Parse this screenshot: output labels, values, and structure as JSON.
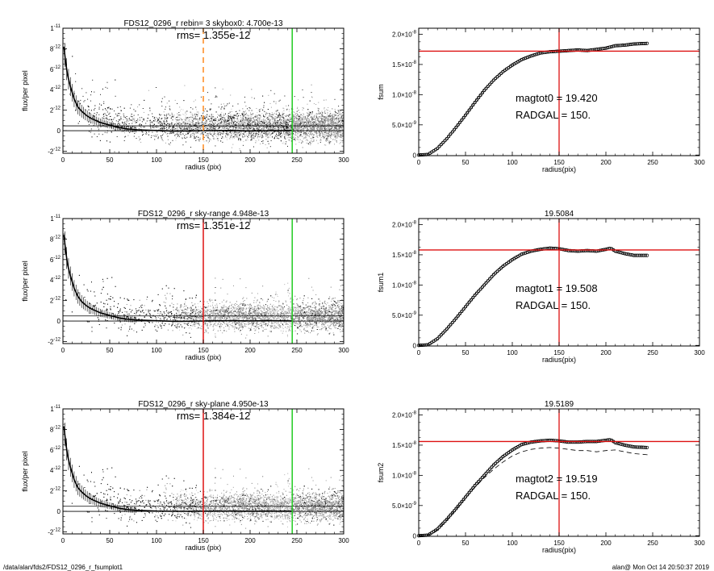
{
  "footer": {
    "left_path": "/data/alan/fds2/FDS12_0296_r_fsumplot1",
    "right_stamp": "alan@  Mon Oct 14 20:50:37 2019"
  },
  "colors": {
    "orange": "#ff8a1e",
    "green": "#22cc22",
    "red": "#dd1111",
    "scatter_dark": "#1a1a1a",
    "scatter_gray": "#9a9a9a",
    "scatter_light": "#c6c6c6"
  },
  "chart_data": [
    {
      "id": "p1",
      "type": "scatter",
      "title": "FDS12_0296_r rebin= 3    skybox0:  4.700e-13",
      "annotation": "rms= 1.355e-12",
      "xlabel": "radius (pix)",
      "ylabel": "flux/per pixel",
      "xlim": [
        0,
        300
      ],
      "ylim": [
        -2.2e-12,
        1e-11
      ],
      "xticks": [
        0,
        50,
        100,
        150,
        200,
        250,
        300
      ],
      "xtick_labels": [
        "0",
        "50",
        "100",
        "150",
        "200",
        "250",
        "300"
      ],
      "yticks": [
        -2e-12,
        0,
        2e-12,
        4e-12,
        6e-12,
        8e-12,
        1e-11
      ],
      "ytick_labels": [
        [
          "-2",
          "-12"
        ],
        [
          "0",
          ""
        ],
        [
          "2",
          "-12"
        ],
        [
          "4",
          "-12"
        ],
        [
          "6",
          "-12"
        ],
        [
          "8",
          "-12"
        ],
        [
          "1",
          "-11"
        ]
      ],
      "hlines": [
        {
          "y": 0,
          "color": "#000000"
        },
        {
          "y": 4.7e-13,
          "color": "#000000"
        }
      ],
      "vlines": [
        {
          "x": 150,
          "color": "orange",
          "dash": true
        },
        {
          "x": 245,
          "color": "green",
          "dash": false
        }
      ],
      "profile": {
        "x": [
          1,
          3,
          5,
          8,
          12,
          16,
          20,
          25,
          30,
          40,
          50,
          60,
          70,
          80,
          100,
          120,
          150,
          180,
          200,
          220,
          245
        ],
        "y": [
          8.2e-12,
          6.6e-12,
          5.4e-12,
          4.3e-12,
          3.1e-12,
          2.3e-12,
          1.9e-12,
          1.5e-12,
          1.2e-12,
          8e-13,
          5.5e-13,
          3e-13,
          1.6e-13,
          8e-14,
          2e-14,
          -4e-14,
          0,
          2e-14,
          -3e-14,
          0,
          1e-14
        ]
      },
      "scatter_style": {
        "shade_start": 245,
        "light_band": null
      }
    },
    {
      "id": "p2",
      "type": "line",
      "title": "",
      "annotation_lines": [
        "magtot0 =  19.420",
        "RADGAL =    150."
      ],
      "xlabel": "radius(pix)",
      "ylabel": "fsum",
      "xlim": [
        0,
        300
      ],
      "ylim": [
        -1e-10,
        2.1e-08
      ],
      "xticks": [
        0,
        50,
        100,
        150,
        200,
        250,
        300
      ],
      "xtick_labels": [
        "0",
        "50",
        "100",
        "150",
        "200",
        "250",
        "300"
      ],
      "yticks": [
        0,
        5e-09,
        1e-08,
        1.5e-08,
        2e-08
      ],
      "ytick_labels": [
        [
          "0",
          ""
        ],
        [
          "5.0×10",
          "-9"
        ],
        [
          "1.0×10",
          "-8"
        ],
        [
          "1.5×10",
          "-8"
        ],
        [
          "2.0×10",
          "-8"
        ]
      ],
      "hline": 1.72e-08,
      "vline": 150,
      "curve": {
        "x": [
          0,
          10,
          20,
          30,
          40,
          50,
          60,
          70,
          80,
          90,
          100,
          110,
          120,
          130,
          140,
          150,
          160,
          170,
          180,
          190,
          200,
          210,
          220,
          230,
          245
        ],
        "y": [
          0,
          1e-10,
          1.1e-09,
          2.7e-09,
          4.6e-09,
          6.6e-09,
          8.7e-09,
          1.07e-08,
          1.24e-08,
          1.38e-08,
          1.49e-08,
          1.58e-08,
          1.64e-08,
          1.69e-08,
          1.71e-08,
          1.72e-08,
          1.73e-08,
          1.74e-08,
          1.73e-08,
          1.75e-08,
          1.77e-08,
          1.81e-08,
          1.82e-08,
          1.84e-08,
          1.85e-08
        ]
      },
      "lower_dashed": null
    },
    {
      "id": "p3",
      "type": "scatter",
      "title": "FDS12_0296_r sky-range  4.948e-13",
      "annotation": "rms= 1.351e-12",
      "xlabel": "radius (pix)",
      "ylabel": "flux/per pixel",
      "xlim": [
        0,
        300
      ],
      "ylim": [
        -2.2e-12,
        1e-11
      ],
      "xticks": [
        0,
        50,
        100,
        150,
        200,
        250,
        300
      ],
      "xtick_labels": [
        "0",
        "50",
        "100",
        "150",
        "200",
        "250",
        "300"
      ],
      "yticks": [
        -2e-12,
        0,
        2e-12,
        4e-12,
        6e-12,
        8e-12,
        1e-11
      ],
      "ytick_labels": [
        [
          "-2",
          "-12"
        ],
        [
          "0",
          ""
        ],
        [
          "2",
          "-12"
        ],
        [
          "4",
          "-12"
        ],
        [
          "6",
          "-12"
        ],
        [
          "8",
          "-12"
        ],
        [
          "1",
          "-11"
        ]
      ],
      "hlines": [
        {
          "y": 0,
          "color": "#000000"
        },
        {
          "y": 4.948e-13,
          "color": "#000000"
        }
      ],
      "vlines": [
        {
          "x": 150,
          "color": "red",
          "dash": false
        },
        {
          "x": 245,
          "color": "green",
          "dash": false
        }
      ],
      "profile": {
        "x": [
          1,
          3,
          5,
          8,
          12,
          16,
          20,
          25,
          30,
          40,
          50,
          60,
          70,
          80,
          100,
          120,
          150,
          180,
          200,
          220,
          245
        ],
        "y": [
          8.4e-12,
          6.8e-12,
          5.5e-12,
          4.4e-12,
          3.2e-12,
          2.4e-12,
          1.9e-12,
          1.5e-12,
          1.2e-12,
          8e-13,
          5.5e-13,
          3e-13,
          1.7e-13,
          1e-13,
          3e-14,
          -3e-14,
          0,
          3e-14,
          1e-14,
          3e-14,
          1e-14
        ]
      },
      "scatter_style": {
        "shade_start": 150,
        "light_band": [
          220,
          245
        ]
      }
    },
    {
      "id": "p4",
      "type": "line",
      "title": "19.5084",
      "annotation_lines": [
        "magtot1 =  19.508",
        "RADGAL =    150."
      ],
      "xlabel": "radius(pix)",
      "ylabel": "fsum1",
      "xlim": [
        0,
        300
      ],
      "ylim": [
        -1e-10,
        2.1e-08
      ],
      "xticks": [
        0,
        50,
        100,
        150,
        200,
        250,
        300
      ],
      "xtick_labels": [
        "0",
        "50",
        "100",
        "150",
        "200",
        "250",
        "300"
      ],
      "yticks": [
        0,
        5e-09,
        1e-08,
        1.5e-08,
        2e-08
      ],
      "ytick_labels": [
        [
          "0",
          ""
        ],
        [
          "5.0×10",
          "-9"
        ],
        [
          "1.0×10",
          "-8"
        ],
        [
          "1.5×10",
          "-8"
        ],
        [
          "2.0×10",
          "-8"
        ]
      ],
      "hline": 1.58e-08,
      "vline": 150,
      "curve": {
        "x": [
          0,
          10,
          20,
          30,
          40,
          50,
          60,
          70,
          80,
          90,
          100,
          110,
          120,
          130,
          140,
          150,
          160,
          170,
          180,
          190,
          200,
          205,
          210,
          220,
          230,
          245
        ],
        "y": [
          0,
          1e-10,
          1.1e-09,
          2.7e-09,
          4.5e-09,
          6.4e-09,
          8.3e-09,
          1e-08,
          1.17e-08,
          1.31e-08,
          1.42e-08,
          1.51e-08,
          1.56e-08,
          1.59e-08,
          1.61e-08,
          1.6e-08,
          1.57e-08,
          1.56e-08,
          1.57e-08,
          1.56e-08,
          1.59e-08,
          1.61e-08,
          1.56e-08,
          1.52e-08,
          1.49e-08,
          1.49e-08
        ]
      },
      "lower_dashed": null
    },
    {
      "id": "p5",
      "type": "scatter",
      "title": "FDS12_0296_r sky-plane  4.950e-13",
      "annotation": "rms= 1.384e-12",
      "xlabel": "radius (pix)",
      "ylabel": "flux/per pixel",
      "xlim": [
        0,
        300
      ],
      "ylim": [
        -2.2e-12,
        1e-11
      ],
      "xticks": [
        0,
        50,
        100,
        150,
        200,
        250,
        300
      ],
      "xtick_labels": [
        "0",
        "50",
        "100",
        "150",
        "200",
        "250",
        "300"
      ],
      "yticks": [
        -2e-12,
        0,
        2e-12,
        4e-12,
        6e-12,
        8e-12,
        1e-11
      ],
      "ytick_labels": [
        [
          "-2",
          "-12"
        ],
        [
          "0",
          ""
        ],
        [
          "2",
          "-12"
        ],
        [
          "4",
          "-12"
        ],
        [
          "6",
          "-12"
        ],
        [
          "8",
          "-12"
        ],
        [
          "1",
          "-11"
        ]
      ],
      "hlines": [
        {
          "y": 0,
          "color": "#000000"
        },
        {
          "y": 4.95e-13,
          "color": "#000000"
        }
      ],
      "vlines": [
        {
          "x": 150,
          "color": "red",
          "dash": false
        },
        {
          "x": 245,
          "color": "green",
          "dash": false
        }
      ],
      "profile": {
        "x": [
          1,
          3,
          5,
          8,
          12,
          16,
          20,
          25,
          30,
          40,
          50,
          60,
          70,
          80,
          100,
          120,
          150,
          180,
          200,
          220,
          245
        ],
        "y": [
          8.3e-12,
          6.7e-12,
          5.4e-12,
          4.3e-12,
          3.1e-12,
          2.3e-12,
          1.9e-12,
          1.5e-12,
          1.2e-12,
          8e-13,
          5.5e-13,
          3e-13,
          1.7e-13,
          1e-13,
          3e-14,
          0,
          2e-14,
          3e-14,
          1e-14,
          2e-14,
          1e-14
        ]
      },
      "scatter_style": {
        "shade_start": 150,
        "light_band": [
          220,
          245
        ]
      }
    },
    {
      "id": "p6",
      "type": "line",
      "title": "19.5189",
      "annotation_lines": [
        "magtot2 =  19.519",
        "RADGAL =    150."
      ],
      "xlabel": "radius(pix)",
      "ylabel": "fsum2",
      "xlim": [
        0,
        300
      ],
      "ylim": [
        -1e-10,
        2.1e-08
      ],
      "xticks": [
        0,
        50,
        100,
        150,
        200,
        250,
        300
      ],
      "xtick_labels": [
        "0",
        "50",
        "100",
        "150",
        "200",
        "250",
        "300"
      ],
      "yticks": [
        0,
        5e-09,
        1e-08,
        1.5e-08,
        2e-08
      ],
      "ytick_labels": [
        [
          "0",
          ""
        ],
        [
          "5.0×10",
          "-9"
        ],
        [
          "1.0×10",
          "-8"
        ],
        [
          "1.5×10",
          "-8"
        ],
        [
          "2.0×10",
          "-8"
        ]
      ],
      "hline": 1.56e-08,
      "vline": 150,
      "curve": {
        "x": [
          0,
          10,
          20,
          30,
          40,
          50,
          60,
          70,
          80,
          90,
          100,
          110,
          120,
          130,
          140,
          150,
          160,
          170,
          180,
          190,
          200,
          205,
          210,
          220,
          230,
          245
        ],
        "y": [
          0,
          1e-10,
          1.1e-09,
          2.7e-09,
          4.5e-09,
          6.4e-09,
          8.3e-09,
          1e-08,
          1.17e-08,
          1.31e-08,
          1.42e-08,
          1.51e-08,
          1.55e-08,
          1.57e-08,
          1.58e-08,
          1.57e-08,
          1.55e-08,
          1.55e-08,
          1.56e-08,
          1.56e-08,
          1.58e-08,
          1.59e-08,
          1.54e-08,
          1.5e-08,
          1.47e-08,
          1.46e-08
        ]
      },
      "lower_dashed": {
        "x": [
          0,
          10,
          20,
          30,
          40,
          50,
          60,
          70,
          80,
          90,
          100,
          110,
          120,
          130,
          140,
          150,
          160,
          170,
          180,
          190,
          200,
          210,
          220,
          230,
          245
        ],
        "y": [
          0,
          1e-10,
          1e-09,
          2.6e-09,
          4.4e-09,
          6.2e-09,
          8e-09,
          9.6e-09,
          1.1e-08,
          1.22e-08,
          1.32e-08,
          1.39e-08,
          1.43e-08,
          1.45e-08,
          1.46e-08,
          1.45e-08,
          1.43e-08,
          1.41e-08,
          1.41e-08,
          1.39e-08,
          1.41e-08,
          1.42e-08,
          1.39e-08,
          1.36e-08,
          1.34e-08
        ]
      }
    }
  ]
}
